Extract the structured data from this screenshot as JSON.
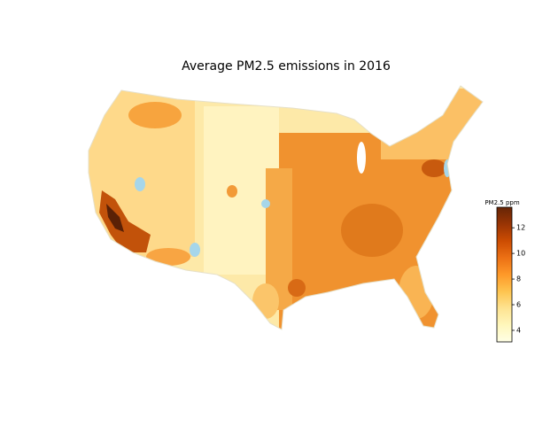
{
  "chart_data": {
    "type": "choropleth",
    "title": "Average PM2.5 emissions in 2016",
    "colorbar": {
      "title": "PM2.5 ppm",
      "clim": [
        3.1,
        13.6
      ],
      "ticks": [
        4,
        6,
        8,
        10,
        12
      ],
      "colorscale": [
        "#ffffe5",
        "#fff7bc",
        "#fee391",
        "#fec44f",
        "#fe9929",
        "#ec7014",
        "#cc4c02",
        "#993404",
        "#662506"
      ]
    }
  }
}
